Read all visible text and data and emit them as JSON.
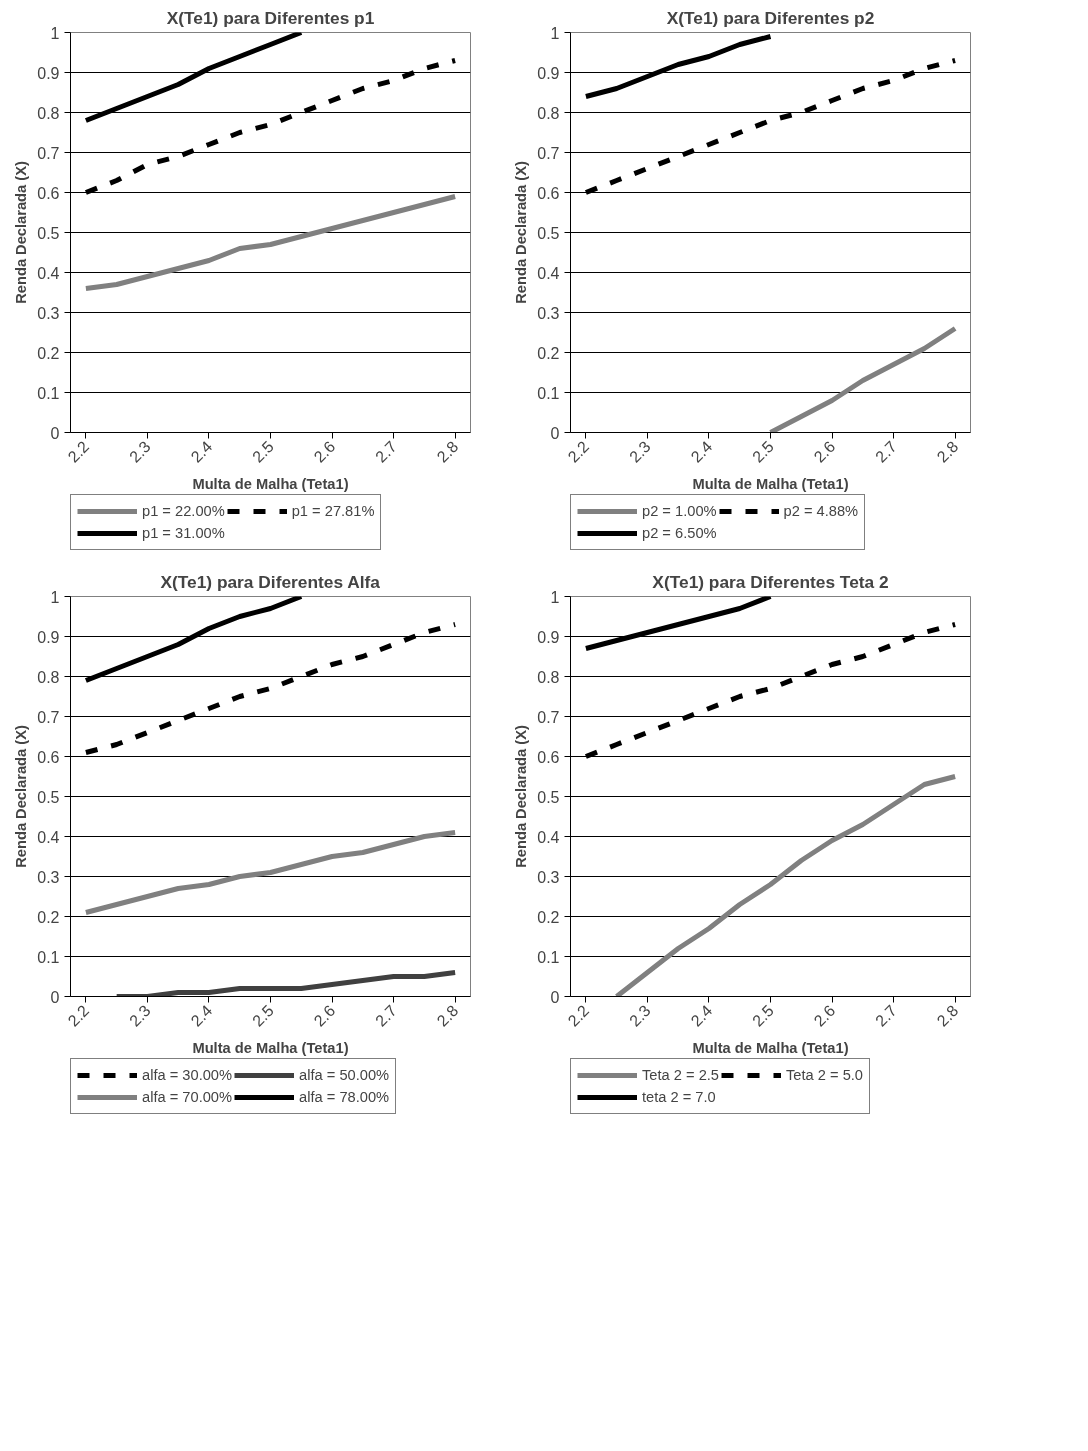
{
  "chart_data": [
    {
      "type": "line",
      "title": "X(Te1) para Diferentes p1",
      "xlabel": "Multa de Malha (Teta1)",
      "ylabel": "Renda Declarada (X)",
      "categories": [
        "2.2",
        null,
        "2.3",
        null,
        "2.4",
        null,
        "2.5",
        null,
        "2.6",
        null,
        "2.7",
        null,
        "2.8"
      ],
      "ylim": [
        0,
        1
      ],
      "yticks": [
        0,
        0.1,
        0.2,
        0.3,
        0.4,
        0.5,
        0.6,
        0.7,
        0.8,
        0.9,
        1
      ],
      "grid": "y",
      "legend": "bottom",
      "series": [
        {
          "name": "p1 = 22.00%",
          "color": "#808080",
          "line_style": "solid",
          "values": [
            0.36,
            0.37,
            0.39,
            0.41,
            0.43,
            0.46,
            0.47,
            0.49,
            0.51,
            0.53,
            0.55,
            0.57,
            0.59
          ]
        },
        {
          "name": "p1 = 27.81%",
          "color": "#000000",
          "line_style": "dashed",
          "values": [
            0.6,
            0.63,
            0.67,
            0.69,
            0.72,
            0.75,
            0.77,
            0.8,
            0.83,
            0.86,
            0.88,
            0.91,
            0.93
          ]
        },
        {
          "name": "p1 = 31.00%",
          "color": "#000000",
          "line_style": "solid",
          "values": [
            0.78,
            0.81,
            0.84,
            0.87,
            0.91,
            0.94,
            0.97,
            1.0,
            null,
            null,
            null,
            null,
            null
          ]
        }
      ]
    },
    {
      "type": "line",
      "title": "X(Te1) para Diferentes p2",
      "xlabel": "Multa de Malha (Teta1)",
      "ylabel": "Renda Declarada (X)",
      "categories": [
        "2.2",
        null,
        "2.3",
        null,
        "2.4",
        null,
        "2.5",
        null,
        "2.6",
        null,
        "2.7",
        null,
        "2.8"
      ],
      "ylim": [
        0,
        1
      ],
      "yticks": [
        0,
        0.1,
        0.2,
        0.3,
        0.4,
        0.5,
        0.6,
        0.7,
        0.8,
        0.9,
        1
      ],
      "grid": "y",
      "legend": "bottom",
      "series": [
        {
          "name": "p2 = 1.00%",
          "color": "#808080",
          "line_style": "solid",
          "values": [
            null,
            null,
            null,
            null,
            null,
            null,
            0.0,
            0.04,
            0.08,
            0.13,
            0.17,
            0.21,
            0.26
          ]
        },
        {
          "name": "p2 = 4.88%",
          "color": "#000000",
          "line_style": "dashed",
          "values": [
            0.6,
            0.63,
            0.66,
            0.69,
            0.72,
            0.75,
            0.78,
            0.8,
            0.83,
            0.86,
            0.88,
            0.91,
            0.93
          ]
        },
        {
          "name": "p2 = 6.50%",
          "color": "#000000",
          "line_style": "solid",
          "values": [
            0.84,
            0.86,
            0.89,
            0.92,
            0.94,
            0.97,
            0.99,
            null,
            null,
            null,
            null,
            null,
            null
          ]
        }
      ]
    },
    {
      "type": "line",
      "title": "X(Te1) para Diferentes Alfa",
      "xlabel": "Multa de Malha (Teta1)",
      "ylabel": "Renda Declarada (X)",
      "categories": [
        "2.2",
        null,
        "2.3",
        null,
        "2.4",
        null,
        "2.5",
        null,
        "2.6",
        null,
        "2.7",
        null,
        "2.8"
      ],
      "ylim": [
        0,
        1
      ],
      "yticks": [
        0,
        0.1,
        0.2,
        0.3,
        0.4,
        0.5,
        0.6,
        0.7,
        0.8,
        0.9,
        1
      ],
      "grid": "y",
      "legend": "bottom",
      "series": [
        {
          "name": "alfa = 30.00%",
          "color": "#000000",
          "line_style": "dashed",
          "values": [
            0.61,
            0.63,
            0.66,
            0.69,
            0.72,
            0.75,
            0.77,
            0.8,
            0.83,
            0.85,
            0.88,
            0.91,
            0.93
          ]
        },
        {
          "name": "alfa = 50.00%",
          "color": "#404040",
          "line_style": "solid",
          "values": [
            null,
            0.0,
            0.0,
            0.01,
            0.01,
            0.02,
            0.02,
            0.02,
            0.03,
            0.04,
            0.05,
            0.05,
            0.06
          ]
        },
        {
          "name": "alfa = 70.00%",
          "color": "#808080",
          "line_style": "solid",
          "values": [
            0.21,
            0.23,
            0.25,
            0.27,
            0.28,
            0.3,
            0.31,
            0.33,
            0.35,
            0.36,
            0.38,
            0.4,
            0.41
          ]
        },
        {
          "name": "alfa = 78.00%",
          "color": "#000000",
          "line_style": "solid",
          "values": [
            0.79,
            0.82,
            0.85,
            0.88,
            0.92,
            0.95,
            0.97,
            1.0,
            null,
            null,
            null,
            null,
            null
          ]
        }
      ]
    },
    {
      "type": "line",
      "title": "X(Te1) para Diferentes Teta 2",
      "xlabel": "Multa de Malha (Teta1)",
      "ylabel": "Renda Declarada (X)",
      "categories": [
        "2.2",
        null,
        "2.3",
        null,
        "2.4",
        null,
        "2.5",
        null,
        "2.6",
        null,
        "2.7",
        null,
        "2.8"
      ],
      "ylim": [
        0,
        1
      ],
      "yticks": [
        0,
        0.1,
        0.2,
        0.3,
        0.4,
        0.5,
        0.6,
        0.7,
        0.8,
        0.9,
        1
      ],
      "grid": "y",
      "legend": "bottom",
      "series": [
        {
          "name": "Teta 2 = 2.5",
          "color": "#808080",
          "line_style": "solid",
          "values": [
            null,
            0.0,
            0.06,
            0.12,
            0.17,
            0.23,
            0.28,
            0.34,
            0.39,
            0.43,
            0.48,
            0.53,
            0.55
          ]
        },
        {
          "name": "Teta 2 = 5.0",
          "color": "#000000",
          "line_style": "dashed",
          "values": [
            0.6,
            0.63,
            0.66,
            0.69,
            0.72,
            0.75,
            0.77,
            0.8,
            0.83,
            0.85,
            0.88,
            0.91,
            0.93
          ]
        },
        {
          "name": "teta 2 = 7.0",
          "color": "#000000",
          "line_style": "solid",
          "values": [
            0.87,
            0.89,
            0.91,
            0.93,
            0.95,
            0.97,
            1.0,
            null,
            null,
            null,
            null,
            null,
            null
          ]
        }
      ]
    }
  ]
}
